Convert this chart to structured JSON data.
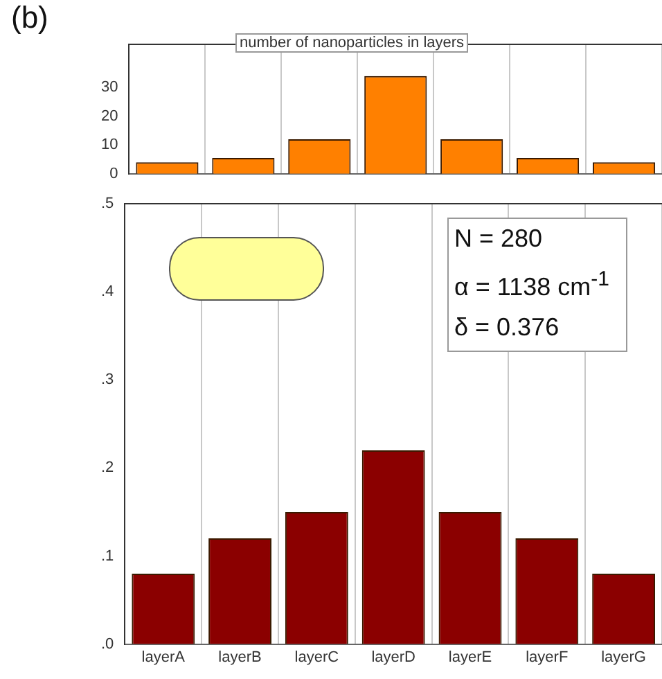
{
  "chart_data": [
    {
      "type": "bar",
      "title": "number of nanoparticles in layers",
      "annotations": [
        "(b)"
      ],
      "categories": [
        null,
        null,
        null,
        null,
        null,
        null,
        null
      ],
      "series": [
        {
          "color": "#ff8000",
          "values": [
            4,
            5.5,
            12,
            34,
            12,
            5.5,
            4
          ]
        }
      ],
      "ylim": [
        0,
        45
      ],
      "yticks": [
        0,
        10,
        20,
        30
      ],
      "grid": "x",
      "tick_labels": "y"
    },
    {
      "type": "bar",
      "annotations": [
        "N = 280",
        "α = 1138 cm$^{-1}$",
        "δ = 0.376"
      ],
      "categories": [
        "layerA",
        "layerB",
        "layerC",
        "layerD",
        "layerE",
        "layerF",
        "layerG"
      ],
      "series": [
        {
          "color": "#8b0000",
          "values": [
            0.08,
            0.12,
            0.15,
            0.22,
            0.15,
            0.12,
            0.08
          ]
        }
      ],
      "ylim": [
        0,
        0.5
      ],
      "yticks": [
        {
          "value": 0,
          "label": ".0"
        },
        {
          "value": 0.1,
          "label": ".1"
        },
        {
          "value": 0.2,
          "label": ".2"
        },
        {
          "value": 0.3,
          "label": ".3"
        },
        {
          "value": 0.4,
          "label": ".4"
        },
        {
          "value": 0.5,
          "label": ".5"
        }
      ],
      "grid": "x"
    }
  ]
}
